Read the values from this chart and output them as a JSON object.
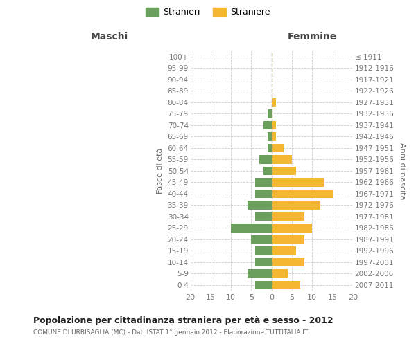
{
  "age_groups": [
    "100+",
    "95-99",
    "90-94",
    "85-89",
    "80-84",
    "75-79",
    "70-74",
    "65-69",
    "60-64",
    "55-59",
    "50-54",
    "45-49",
    "40-44",
    "35-39",
    "30-34",
    "25-29",
    "20-24",
    "15-19",
    "10-14",
    "5-9",
    "0-4"
  ],
  "birth_years": [
    "≤ 1911",
    "1912-1916",
    "1917-1921",
    "1922-1926",
    "1927-1931",
    "1932-1936",
    "1937-1941",
    "1942-1946",
    "1947-1951",
    "1952-1956",
    "1957-1961",
    "1962-1966",
    "1967-1971",
    "1972-1976",
    "1977-1981",
    "1982-1986",
    "1987-1991",
    "1992-1996",
    "1997-2001",
    "2002-2006",
    "2007-2011"
  ],
  "maschi": [
    0,
    0,
    0,
    0,
    0,
    1,
    2,
    1,
    1,
    3,
    2,
    4,
    4,
    6,
    4,
    10,
    5,
    4,
    4,
    6,
    4
  ],
  "femmine": [
    0,
    0,
    0,
    0,
    1,
    0,
    1,
    1,
    3,
    5,
    6,
    13,
    15,
    12,
    8,
    10,
    8,
    6,
    8,
    4,
    7
  ],
  "maschi_color": "#6a9f5e",
  "femmine_color": "#f5b731",
  "background_color": "#ffffff",
  "grid_color": "#cccccc",
  "title": "Popolazione per cittadinanza straniera per età e sesso - 2012",
  "subtitle": "COMUNE DI URBISAGLIA (MC) - Dati ISTAT 1° gennaio 2012 - Elaborazione TUTTITALIA.IT",
  "xlabel_left": "Maschi",
  "xlabel_right": "Femmine",
  "ylabel_left": "Fasce di età",
  "ylabel_right": "Anni di nascita",
  "legend_stranieri": "Stranieri",
  "legend_straniere": "Straniere",
  "xlim": 20,
  "bar_height": 0.75
}
